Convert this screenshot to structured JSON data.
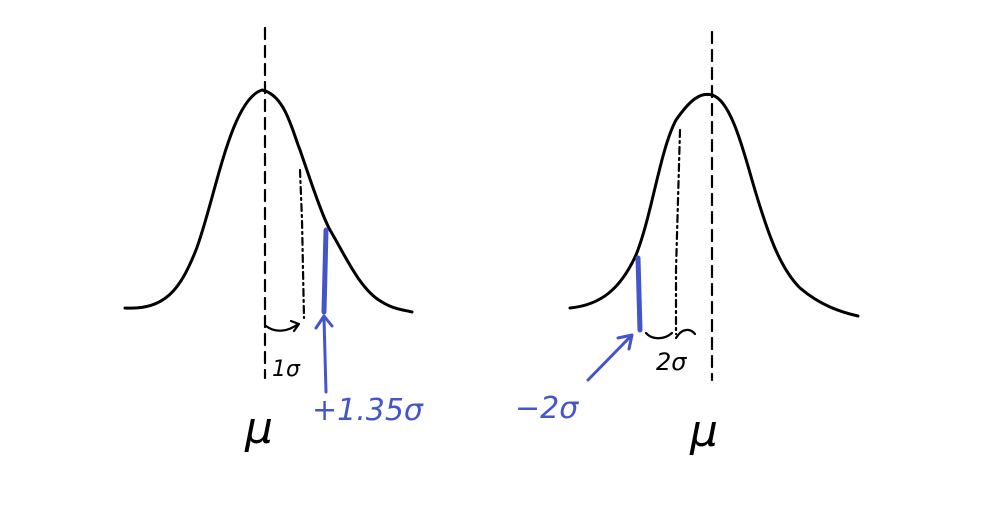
{
  "colors": {
    "ink": "#000000",
    "highlight": "#4455cc",
    "background": "#ffffff"
  },
  "left_diagram": {
    "mean_label": "μ",
    "sd_label": "1σ",
    "marker_label": "+1.35σ"
  },
  "right_diagram": {
    "mean_label": "μ",
    "sd_label": "2σ",
    "marker_label": "−2σ"
  }
}
